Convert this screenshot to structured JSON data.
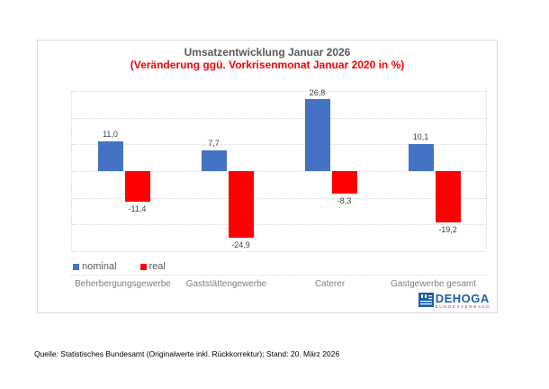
{
  "chart_data": {
    "type": "bar",
    "title": "Umsatzentwicklung Januar 2026",
    "subtitle": "(Veränderung ggü. Vorkrisenmonat Januar 2020 in %)",
    "categories": [
      "Beherbergungsgewerbe",
      "Gaststättengewerbe",
      "Caterer",
      "Gastgewerbe gesamt"
    ],
    "series": [
      {
        "name": "nominal",
        "color": "#4472c4",
        "values": [
          11.0,
          7.7,
          26.8,
          10.1
        ],
        "labels": [
          "11,0",
          "7,7",
          "26,8",
          "10,1"
        ]
      },
      {
        "name": "real",
        "color": "#ff0000",
        "values": [
          -11.4,
          -24.9,
          -8.3,
          -19.2
        ],
        "labels": [
          "-11,4",
          "-24,9",
          "-8,3",
          "-19,2"
        ]
      }
    ],
    "ylim": [
      -30,
      30
    ],
    "grid_step": 10,
    "grid": true,
    "y_axis_labels_visible": false,
    "legend_position": "bottom-left"
  },
  "legend": {
    "items": [
      {
        "label": "nominal",
        "color": "#4472c4"
      },
      {
        "label": "real",
        "color": "#ff0000"
      }
    ]
  },
  "logo": {
    "name": "DEHOGA",
    "subtext": "BUNDESVERBAND",
    "color": "#1b5ea8"
  },
  "footer": {
    "source": "Quelle: Statistisches Bundesamt (Originalwerte inkl. Rückkorrektur); Stand: 20. März 2026"
  }
}
